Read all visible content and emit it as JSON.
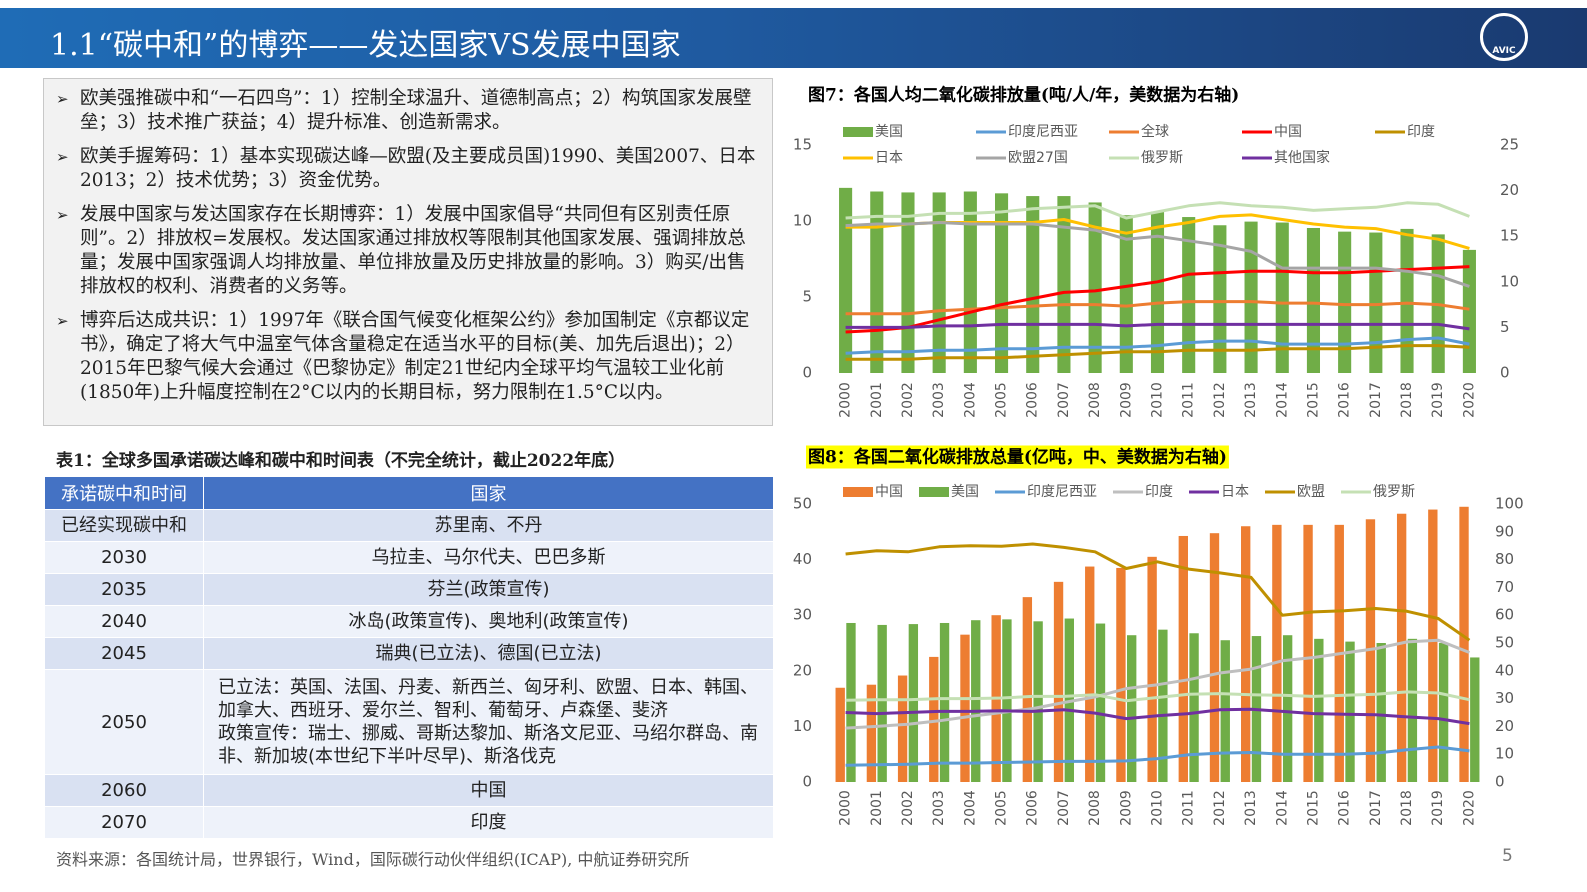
{
  "header": {
    "title": "1.1“碳中和”的博弈——发达国家VS发展中国家",
    "logo_text": "AVIC"
  },
  "bullets": [
    "欧美强推碳中和“一石四鸟”：1）控制全球温升、道德制高点；2）构筑国家发展壁垒；3）技术推广获益；4）提升标准、创造新需求。",
    "欧美手握筹码：1）基本实现碳达峰—欧盟(及主要成员国)1990、美国2007、日本2013；2）技术优势；3）资金优势。",
    "发展中国家与发达国家存在长期博弈：1）发展中国家倡导“共同但有区别责任原则”。2）排放权=发展权。发达国家通过排放权等限制其他国家发展、强调排放总量；发展中国家强调人均排放量、单位排放量及历史排放量的影响。3）购买/出售排放权的权利、消费者的义务等。",
    "博弈后达成共识：1）1997年《联合国气候变化框架公约》参加国制定《京都议定书》，确定了将大气中温室气体含量稳定在适当水平的目标(美、加先后退出)；2）2015年巴黎气候大会通过《巴黎协定》制定21世纪内全球平均气温较工业化前(1850年)上升幅度控制在2°C以内的长期目标，努力限制在1.5°C以内。"
  ],
  "table": {
    "title": "表1：全球多国承诺碳达峰和碳中和时间表（不完全统计，截止2022年底）",
    "header": [
      "承诺碳中和时间",
      "国家"
    ],
    "rows": [
      [
        "已经实现碳中和",
        "苏里南、不丹"
      ],
      [
        "2030",
        "乌拉圭、马尔代夫、巴巴多斯"
      ],
      [
        "2035",
        "芬兰(政策宣传)"
      ],
      [
        "2040",
        "冰岛(政策宣传)、奥地利(政策宣传)"
      ],
      [
        "2045",
        "瑞典(已立法)、德国(已立法)"
      ],
      [
        "2050",
        [
          "已立法：英国、法国、丹麦、新西兰、匈牙利、欧盟、日本、韩国、加拿大、西班牙、爱尔兰、智利、葡萄牙、卢森堡、斐济",
          "政策宣传：瑞士、挪威、哥斯达黎加、斯洛文尼亚、马绍尔群岛、南非、新加坡(本世纪下半叶尽早)、斯洛伐克"
        ]
      ],
      [
        "2060",
        "中国"
      ],
      [
        "2070",
        "印度"
      ]
    ]
  },
  "source": "资料来源：各国统计局，世界银行，Wind，国际碳行动伙伴组织(ICAP), 中航证券研究所",
  "page_number": 5,
  "chart_data": [
    {
      "type": "combo",
      "title": "图7：各国人均二氧化碳排放量(吨/人/年，美数据为右轴)",
      "categories": [
        "2000",
        "2001",
        "2002",
        "2003",
        "2004",
        "2005",
        "2006",
        "2007",
        "2008",
        "2009",
        "2010",
        "2011",
        "2012",
        "2013",
        "2014",
        "2015",
        "2016",
        "2017",
        "2018",
        "2019",
        "2020"
      ],
      "ylim": [
        0,
        15
      ],
      "yticks": [
        0,
        5,
        10,
        15
      ],
      "y2lim": [
        0,
        25
      ],
      "y2ticks": [
        0,
        5,
        10,
        15,
        20,
        25
      ],
      "grid": false,
      "legend": "top",
      "series": [
        {
          "name": "美国",
          "type": "bar",
          "axis": "y2",
          "color": "#70ad47",
          "values": [
            20.3,
            19.9,
            19.8,
            19.8,
            19.9,
            19.7,
            19.4,
            19.4,
            18.7,
            17.3,
            17.7,
            17.1,
            16.2,
            16.6,
            16.5,
            15.9,
            15.5,
            15.4,
            15.8,
            15.2,
            13.5
          ]
        },
        {
          "name": "印度尼西亚",
          "type": "line",
          "color": "#5b9bd5",
          "values": [
            1.3,
            1.4,
            1.4,
            1.5,
            1.5,
            1.6,
            1.6,
            1.7,
            1.7,
            1.7,
            1.8,
            2.0,
            2.1,
            2.1,
            1.9,
            1.9,
            1.9,
            2.0,
            2.2,
            2.3,
            1.9
          ]
        },
        {
          "name": "全球",
          "type": "line",
          "color": "#ed7d31",
          "values": [
            3.9,
            3.9,
            3.9,
            4.1,
            4.2,
            4.3,
            4.4,
            4.5,
            4.5,
            4.4,
            4.6,
            4.7,
            4.7,
            4.7,
            4.6,
            4.6,
            4.5,
            4.5,
            4.6,
            4.5,
            4.2
          ]
        },
        {
          "name": "中国",
          "type": "line",
          "color": "#ff0000",
          "values": [
            2.7,
            2.8,
            3.0,
            3.5,
            4.0,
            4.5,
            4.9,
            5.3,
            5.4,
            5.7,
            6.0,
            6.5,
            6.6,
            6.7,
            6.7,
            6.6,
            6.6,
            6.7,
            6.8,
            6.9,
            7.0
          ]
        },
        {
          "name": "印度",
          "type": "line",
          "color": "#bf9000",
          "values": [
            0.9,
            0.9,
            0.9,
            1.0,
            1.0,
            1.0,
            1.1,
            1.2,
            1.3,
            1.4,
            1.4,
            1.5,
            1.5,
            1.5,
            1.6,
            1.6,
            1.6,
            1.7,
            1.8,
            1.8,
            1.7
          ]
        },
        {
          "name": "日本",
          "type": "line",
          "color": "#ffc000",
          "values": [
            9.6,
            9.6,
            9.8,
            9.9,
            9.9,
            9.9,
            9.9,
            10.1,
            9.6,
            9.2,
            9.6,
            9.9,
            10.3,
            10.4,
            10.1,
            9.8,
            9.6,
            9.5,
            9.1,
            8.8,
            8.2
          ]
        },
        {
          "name": "欧盟27国",
          "type": "line",
          "color": "#a5a5a5",
          "values": [
            9.7,
            9.8,
            9.8,
            9.9,
            9.8,
            9.8,
            9.8,
            9.6,
            9.4,
            8.8,
            9.0,
            8.7,
            8.4,
            8.0,
            6.9,
            6.9,
            6.9,
            6.9,
            6.7,
            6.4,
            5.7
          ]
        },
        {
          "name": "俄罗斯",
          "type": "line",
          "color": "#c5e0b4",
          "values": [
            10.2,
            10.3,
            10.3,
            10.5,
            10.5,
            10.6,
            10.8,
            10.9,
            11.0,
            10.2,
            10.6,
            11.0,
            11.2,
            11.0,
            10.9,
            10.7,
            10.8,
            10.9,
            11.2,
            11.1,
            10.3
          ]
        },
        {
          "name": "其他国家",
          "type": "line",
          "color": "#7030a0",
          "values": [
            3.0,
            3.0,
            3.0,
            3.1,
            3.1,
            3.2,
            3.2,
            3.2,
            3.2,
            3.1,
            3.2,
            3.2,
            3.2,
            3.2,
            3.2,
            3.2,
            3.2,
            3.2,
            3.2,
            3.2,
            2.9
          ]
        }
      ]
    },
    {
      "type": "combo",
      "title": "图8：各国二氧化碳排放总量(亿吨，中、美数据为右轴)",
      "title_background": "#ffff00",
      "categories": [
        "2000",
        "2001",
        "2002",
        "2003",
        "2004",
        "2005",
        "2006",
        "2007",
        "2008",
        "2009",
        "2010",
        "2011",
        "2012",
        "2013",
        "2014",
        "2015",
        "2016",
        "2017",
        "2018",
        "2019",
        "2020"
      ],
      "ylim": [
        0,
        50
      ],
      "yticks": [
        0,
        10,
        20,
        30,
        40,
        50
      ],
      "y2lim": [
        0,
        100
      ],
      "y2ticks": [
        0,
        10,
        20,
        30,
        40,
        50,
        60,
        70,
        80,
        90,
        100
      ],
      "grid": false,
      "legend": "top",
      "series": [
        {
          "name": "中国",
          "type": "bar",
          "axis": "y2",
          "color": "#ed7d31",
          "values": [
            33.9,
            35.0,
            38.3,
            45.0,
            53.0,
            60.0,
            66.5,
            72.0,
            77.5,
            77.0,
            81.0,
            88.5,
            89.5,
            92.0,
            92.5,
            92.5,
            92.5,
            94.5,
            96.5,
            98.0,
            99.0
          ]
        },
        {
          "name": "美国",
          "type": "bar",
          "axis": "y2",
          "color": "#70ad47",
          "values": [
            57.2,
            56.5,
            56.8,
            57.2,
            58.2,
            58.5,
            57.8,
            58.8,
            57.0,
            52.8,
            54.8,
            53.5,
            51.0,
            52.5,
            52.8,
            51.5,
            50.5,
            50.0,
            51.5,
            50.0,
            44.8
          ]
        },
        {
          "name": "印度尼西亚",
          "type": "line",
          "color": "#5b9bd5",
          "values": [
            3.0,
            3.1,
            3.2,
            3.4,
            3.4,
            3.5,
            3.6,
            3.7,
            3.7,
            3.8,
            4.2,
            4.9,
            5.2,
            5.3,
            5.0,
            5.0,
            5.0,
            5.2,
            5.8,
            6.3,
            5.6
          ]
        },
        {
          "name": "印度",
          "type": "line",
          "color": "#bfbfbf",
          "values": [
            9.7,
            10.0,
            10.4,
            11.0,
            11.8,
            12.5,
            13.2,
            14.3,
            15.3,
            16.8,
            17.5,
            18.4,
            19.6,
            20.3,
            21.8,
            22.4,
            23.2,
            24.0,
            25.2,
            25.5,
            23.3
          ]
        },
        {
          "name": "日本",
          "type": "line",
          "color": "#7030a0",
          "values": [
            12.5,
            12.3,
            12.5,
            12.7,
            12.7,
            12.8,
            12.7,
            13.0,
            12.4,
            11.4,
            11.9,
            12.3,
            13.0,
            13.1,
            12.7,
            12.3,
            12.2,
            12.1,
            11.7,
            11.4,
            10.5
          ]
        },
        {
          "name": "欧盟",
          "type": "line",
          "color": "#bf9000",
          "values": [
            41.0,
            41.6,
            41.4,
            42.3,
            42.5,
            42.4,
            42.8,
            42.2,
            41.4,
            38.4,
            39.6,
            38.3,
            37.6,
            36.8,
            30.0,
            30.6,
            30.8,
            31.2,
            30.7,
            29.4,
            25.5
          ]
        },
        {
          "name": "俄罗斯",
          "type": "line",
          "color": "#c5e0b4",
          "values": [
            14.7,
            14.8,
            14.8,
            15.0,
            15.0,
            15.1,
            15.4,
            15.4,
            15.7,
            14.6,
            15.2,
            15.8,
            15.9,
            15.7,
            15.6,
            15.4,
            15.6,
            15.8,
            16.2,
            16.0,
            14.8
          ]
        }
      ]
    }
  ]
}
